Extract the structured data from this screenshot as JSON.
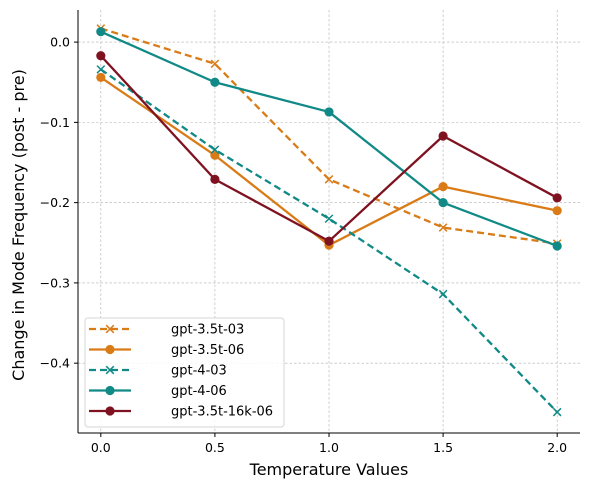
{
  "chart_data": {
    "type": "line",
    "title": "",
    "xlabel": "Temperature Values",
    "ylabel": "Change in Mode Frequency (post - pre)",
    "x": [
      0.0,
      0.5,
      1.0,
      1.5,
      2.0
    ],
    "xticks": [
      "0.0",
      "0.5",
      "1.0",
      "1.5",
      "2.0"
    ],
    "xlim": [
      -0.1,
      2.1
    ],
    "yticks": [
      "0.0",
      "−0.1",
      "−0.2",
      "−0.3",
      "−0.4"
    ],
    "ytick_values": [
      0.0,
      -0.1,
      -0.2,
      -0.3,
      -0.4
    ],
    "ylim": [
      -0.487,
      0.04
    ],
    "grid": true,
    "legend_position": "lower-left",
    "series": [
      {
        "name": "gpt-3.5t-03",
        "values": [
          0.017,
          -0.027,
          -0.171,
          -0.231,
          -0.251
        ],
        "color": "#d97c18",
        "dashed": true,
        "marker": "x"
      },
      {
        "name": "gpt-3.5t-06",
        "values": [
          -0.044,
          -0.141,
          -0.253,
          -0.18,
          -0.21
        ],
        "color": "#d97c18",
        "dashed": false,
        "marker": "o"
      },
      {
        "name": "gpt-4-03",
        "values": [
          -0.034,
          -0.134,
          -0.22,
          -0.314,
          -0.461
        ],
        "color": "#118a87",
        "dashed": true,
        "marker": "x"
      },
      {
        "name": "gpt-4-06",
        "values": [
          0.013,
          -0.05,
          -0.087,
          -0.2,
          -0.254
        ],
        "color": "#118a87",
        "dashed": false,
        "marker": "o"
      },
      {
        "name": "gpt-3.5t-16k-06",
        "values": [
          -0.017,
          -0.171,
          -0.248,
          -0.117,
          -0.194
        ],
        "color": "#7f1220",
        "dashed": false,
        "marker": "o"
      }
    ]
  }
}
